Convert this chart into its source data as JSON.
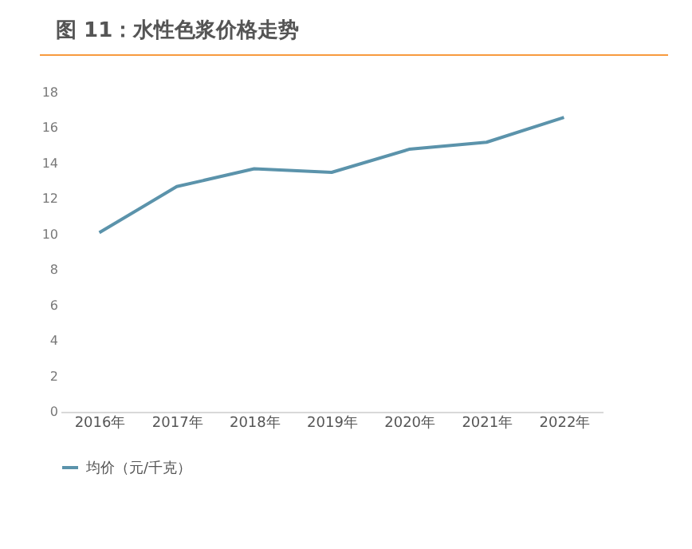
{
  "chart_data": {
    "type": "line",
    "title": "图 11：水性色浆价格走势",
    "categories": [
      "2016年",
      "2017年",
      "2018年",
      "2019年",
      "2020年",
      "2021年",
      "2022年"
    ],
    "series": [
      {
        "name": "均价（元/千克）",
        "color": "#5b93ab",
        "values": [
          10.1,
          12.7,
          13.7,
          13.5,
          14.8,
          15.2,
          16.6
        ]
      }
    ],
    "ylim": [
      0,
      18
    ],
    "yticks": [
      0,
      2,
      4,
      6,
      8,
      10,
      12,
      14,
      16,
      18
    ],
    "grid": false,
    "legend": "bottom",
    "marker": "none",
    "line_style": "solid"
  }
}
